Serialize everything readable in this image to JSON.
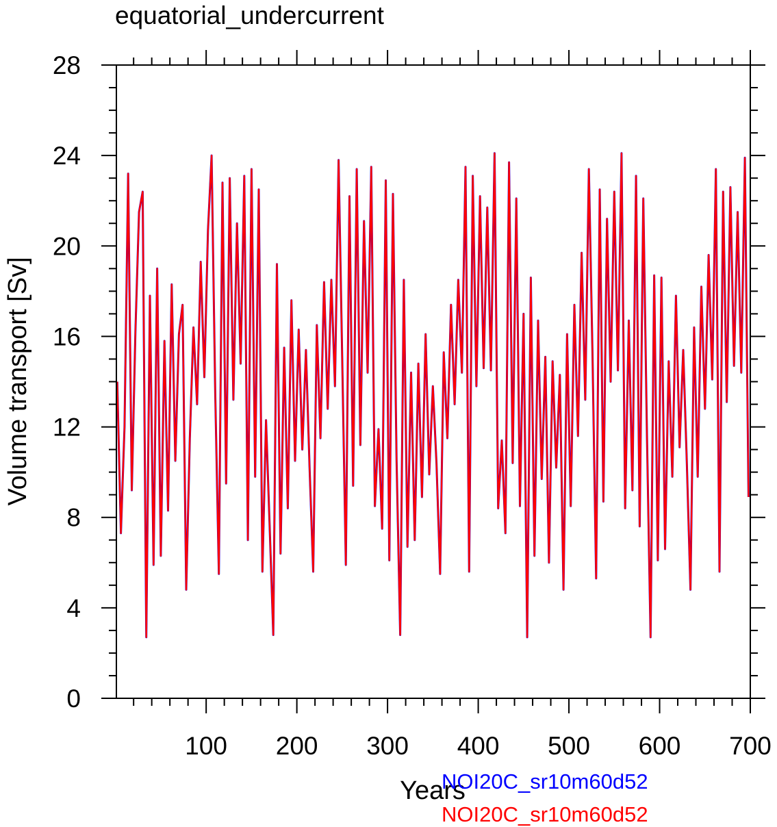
{
  "chart_data": {
    "type": "line",
    "title": "equatorial_undercurrent",
    "xlabel": "Years",
    "ylabel": "Volume transport [Sv]",
    "xlim": [
      1,
      700
    ],
    "ylim": [
      0,
      28
    ],
    "x_ticks": [
      100,
      200,
      300,
      400,
      500,
      600,
      700
    ],
    "x_tick_labels": [
      "100",
      "200",
      "300",
      "400",
      "500",
      "600",
      "700"
    ],
    "y_ticks": [
      0,
      4,
      8,
      12,
      16,
      20,
      24,
      28
    ],
    "y_tick_labels": [
      "0",
      "4",
      "8",
      "12",
      "16",
      "20",
      "24",
      "28"
    ],
    "x_minor_step": 20,
    "y_minor_step": 1,
    "grid": false,
    "legend_placement": "bottom-right",
    "x_start": 2,
    "x_step": 4,
    "values": [
      14,
      7.3,
      12,
      23.2,
      9.2,
      16.2,
      21.5,
      22.4,
      2.7,
      17.8,
      5.9,
      19,
      6.3,
      15.8,
      8.3,
      18.3,
      10.5,
      16.1,
      17.4,
      4.8,
      11.5,
      16.4,
      13,
      19.3,
      14.2,
      20.7,
      24,
      13.5,
      5.5,
      22.8,
      9.5,
      23,
      13.2,
      21,
      14.8,
      23.1,
      7,
      23.4,
      9.8,
      22.5,
      5.6,
      12.3,
      7.6,
      2.8,
      19.2,
      6.4,
      15.5,
      8.4,
      17.6,
      10.5,
      16.3,
      11,
      15.4,
      10.2,
      5.6,
      16.5,
      11.5,
      18.4,
      12.8,
      18.5,
      13.8,
      23.8,
      15,
      5.9,
      22.2,
      9.4,
      23.4,
      11.2,
      21.1,
      14.4,
      23.5,
      8.5,
      11.9,
      7.5,
      22.9,
      6.1,
      22.3,
      10.5,
      2.8,
      18.5,
      6.7,
      14.4,
      7,
      14.8,
      8.9,
      16.1,
      9.9,
      13.8,
      10.4,
      5.5,
      15.3,
      11.5,
      17.4,
      13,
      18.5,
      14.4,
      23.5,
      5.6,
      23.1,
      13.8,
      22.2,
      14.6,
      21.7,
      14.5,
      24.1,
      8.4,
      11.4,
      7.3,
      23.7,
      10.4,
      22.1,
      8.5,
      17,
      2.7,
      18.6,
      6.3,
      16.7,
      9.7,
      15.1,
      6,
      14.9,
      10.2,
      14.3,
      4.8,
      16.1,
      8.5,
      17.4,
      11.6,
      19.7,
      13.2,
      23.4,
      15.2,
      5.3,
      22.5,
      8.7,
      21.2,
      14,
      22.4,
      14.5,
      24.1,
      8.4,
      16.7,
      9.2,
      23.1,
      7.6,
      22.1,
      11.7,
      2.7,
      18.7,
      6.1,
      18.6,
      6.6,
      14.9,
      9.8,
      17.8,
      11.1,
      15.4,
      10.4,
      4.8,
      16.4,
      9.8,
      18.2,
      12.8,
      19.6,
      14.1,
      23.4,
      5.6,
      22.4,
      13.1,
      22.6,
      14.7,
      21.5,
      14.4,
      23.9,
      8.9
    ],
    "series": [
      {
        "name": "NOI20C_sr10m60d52",
        "color": "#0000ff"
      },
      {
        "name": "NOI20C_sr10m60d52",
        "color": "#ff0000"
      }
    ]
  }
}
